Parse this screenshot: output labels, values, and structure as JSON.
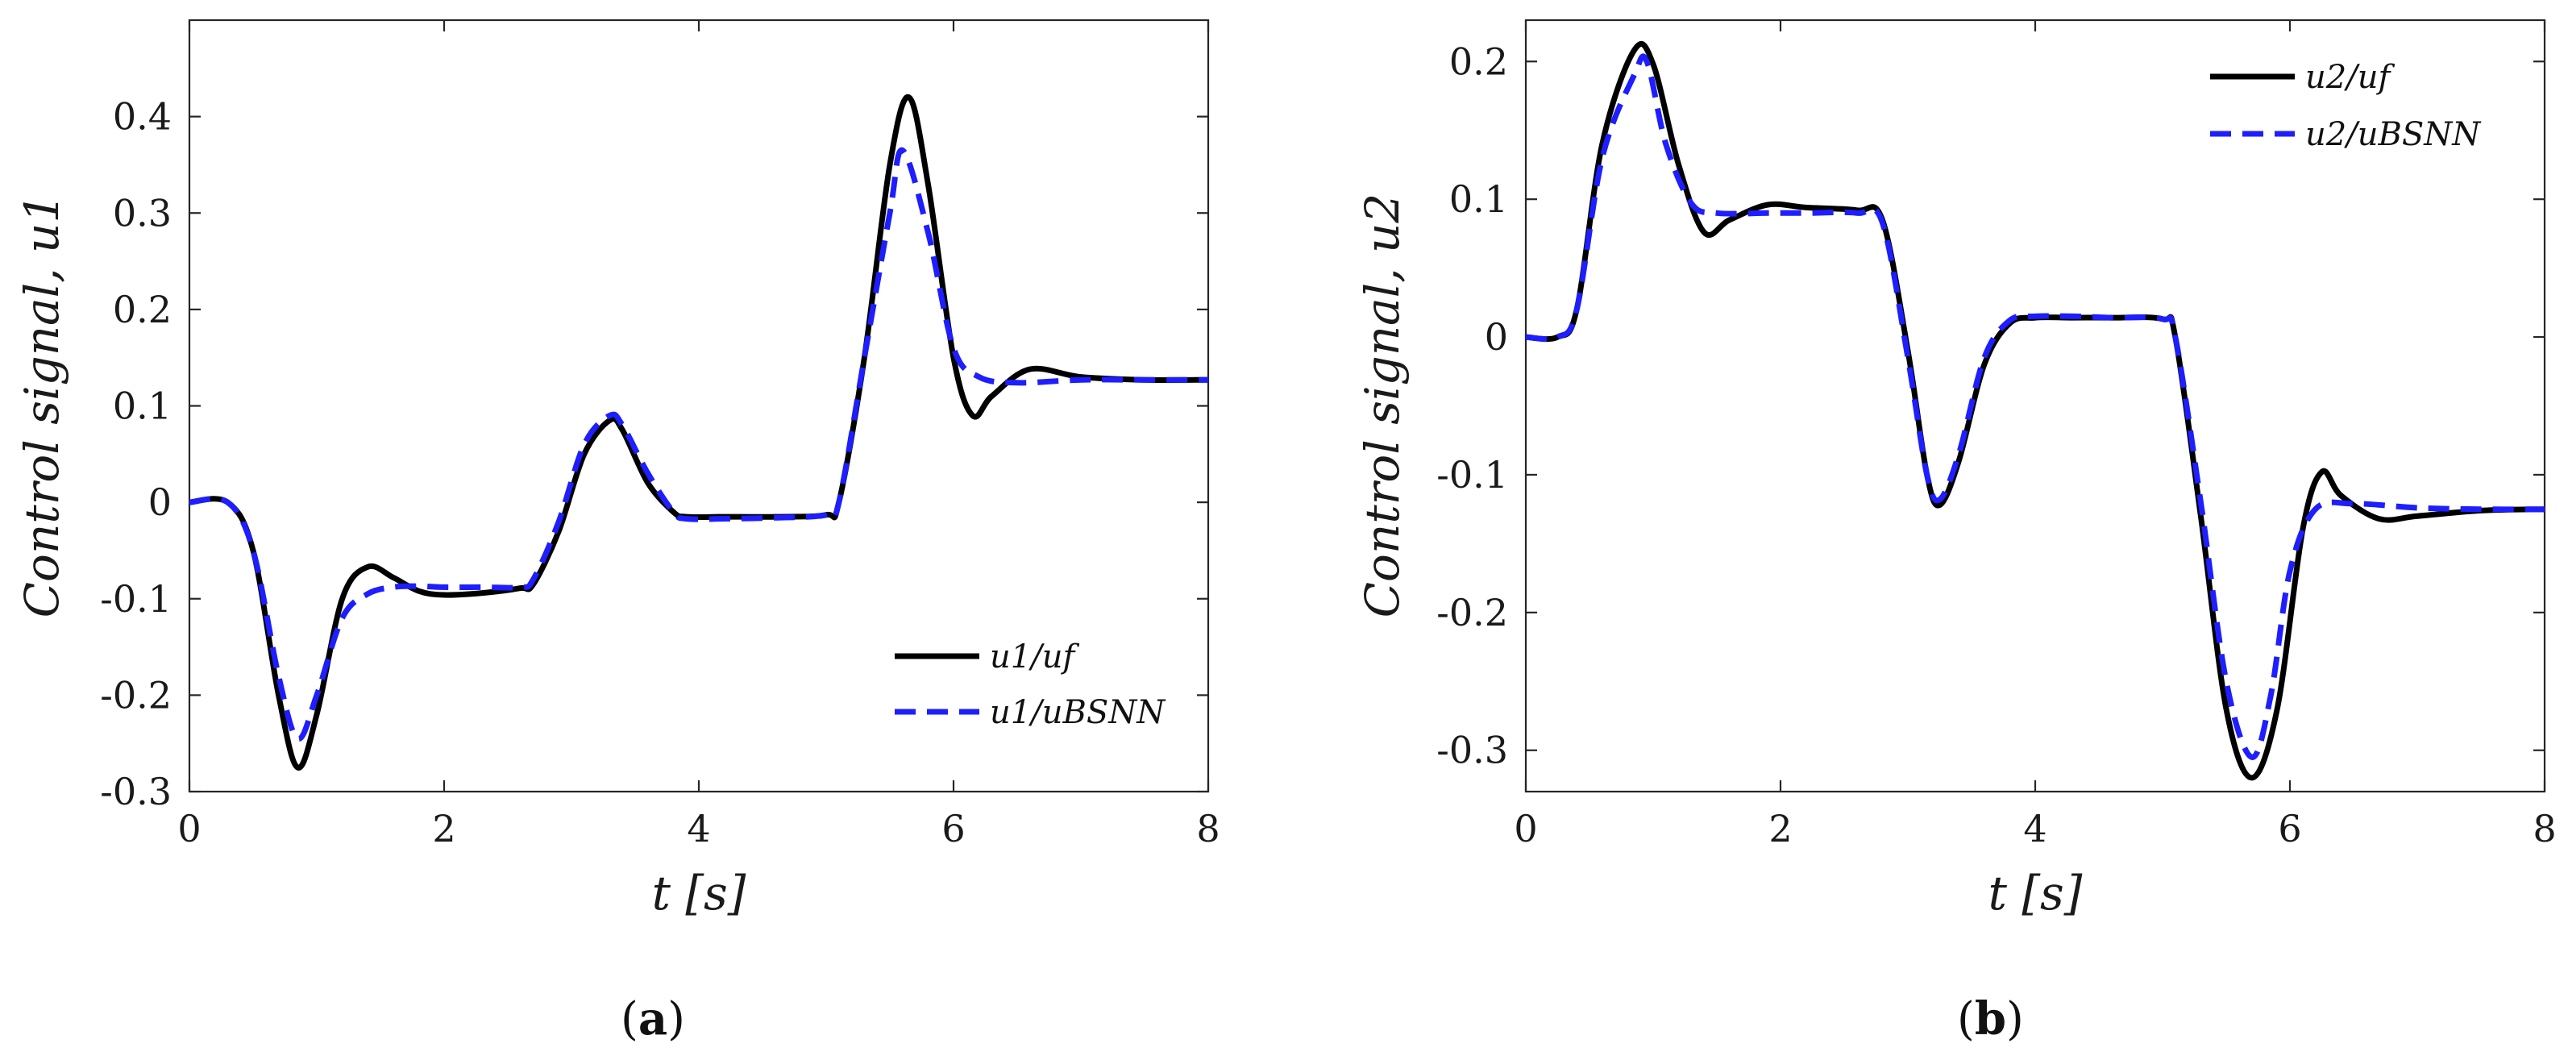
{
  "chart_data": [
    {
      "type": "line",
      "panel_label": "a",
      "xlabel": "t [s]",
      "ylabel": "Control signal, u1",
      "xlim": [
        0,
        8
      ],
      "ylim": [
        -0.3,
        0.5
      ],
      "xticks": [
        0,
        2,
        4,
        6,
        8
      ],
      "xtick_labels": [
        "0",
        "2",
        "4",
        "6",
        "8"
      ],
      "yticks": [
        -0.3,
        -0.2,
        -0.1,
        0,
        0.1,
        0.2,
        0.3,
        0.4
      ],
      "ytick_labels": [
        "-0.3",
        "-0.2",
        "-0.1",
        "0",
        "0.1",
        "0.2",
        "0.3",
        "0.4"
      ],
      "grid": false,
      "legend_position": "bottom-right",
      "series": [
        {
          "name": "u1/uf",
          "color": "#000000",
          "style": "solid",
          "x": [
            0,
            0.3,
            0.5,
            0.7,
            0.85,
            1.0,
            1.2,
            1.4,
            1.6,
            1.8,
            2.0,
            2.3,
            2.6,
            2.7,
            2.9,
            3.1,
            3.3,
            3.4,
            3.6,
            3.8,
            3.9,
            4.2,
            4.6,
            5.0,
            5.1,
            5.3,
            5.5,
            5.65,
            5.8,
            6.0,
            6.15,
            6.3,
            6.6,
            7.0,
            7.5,
            8.0
          ],
          "y": [
            0,
            0,
            -0.05,
            -0.2,
            -0.275,
            -0.22,
            -0.1,
            -0.067,
            -0.078,
            -0.092,
            -0.096,
            -0.094,
            -0.089,
            -0.085,
            -0.03,
            0.05,
            0.085,
            0.075,
            0.02,
            -0.01,
            -0.015,
            -0.015,
            -0.015,
            -0.013,
            0.0,
            0.15,
            0.35,
            0.42,
            0.33,
            0.15,
            0.09,
            0.11,
            0.138,
            0.13,
            0.127,
            0.127
          ]
        },
        {
          "name": "u1/uBSNN",
          "color": "#1e1eff",
          "style": "dashed",
          "x": [
            0,
            0.3,
            0.5,
            0.7,
            0.85,
            1.0,
            1.2,
            1.4,
            1.6,
            1.8,
            2.0,
            2.3,
            2.6,
            2.7,
            2.9,
            3.1,
            3.3,
            3.4,
            3.6,
            3.8,
            3.9,
            4.2,
            4.6,
            5.0,
            5.1,
            5.3,
            5.5,
            5.6,
            5.8,
            6.0,
            6.2,
            6.5,
            7.0,
            7.5,
            8.0
          ],
          "y": [
            0,
            0,
            -0.05,
            -0.18,
            -0.245,
            -0.2,
            -0.12,
            -0.095,
            -0.088,
            -0.087,
            -0.088,
            -0.088,
            -0.088,
            -0.08,
            -0.02,
            0.06,
            0.09,
            0.08,
            0.03,
            -0.01,
            -0.017,
            -0.017,
            -0.016,
            -0.013,
            0.0,
            0.15,
            0.3,
            0.365,
            0.28,
            0.16,
            0.13,
            0.124,
            0.127,
            0.127,
            0.127
          ]
        }
      ]
    },
    {
      "type": "line",
      "panel_label": "b",
      "xlabel": "t [s]",
      "ylabel": "Control signal, u2",
      "xlim": [
        0,
        8
      ],
      "ylim": [
        -0.33,
        0.23
      ],
      "xticks": [
        0,
        2,
        4,
        6,
        8
      ],
      "xtick_labels": [
        "0",
        "2",
        "4",
        "6",
        "8"
      ],
      "yticks": [
        -0.3,
        -0.2,
        -0.1,
        0,
        0.1,
        0.2
      ],
      "ytick_labels": [
        "-0.3",
        "-0.2",
        "-0.1",
        "0",
        "0.1",
        "0.2"
      ],
      "grid": false,
      "legend_position": "top-right",
      "series": [
        {
          "name": "u2/uf",
          "color": "#000000",
          "style": "solid",
          "x": [
            0,
            0.25,
            0.4,
            0.6,
            0.85,
            1.0,
            1.2,
            1.4,
            1.6,
            1.9,
            2.2,
            2.6,
            2.8,
            3.0,
            3.15,
            3.25,
            3.4,
            3.6,
            3.8,
            4.0,
            4.3,
            4.6,
            5.0,
            5.1,
            5.3,
            5.5,
            5.7,
            5.9,
            6.1,
            6.25,
            6.4,
            6.7,
            7.0,
            7.5,
            8.0
          ],
          "y": [
            0,
            0,
            0.02,
            0.14,
            0.208,
            0.198,
            0.125,
            0.076,
            0.085,
            0.096,
            0.094,
            0.092,
            0.085,
            -0.01,
            -0.1,
            -0.122,
            -0.09,
            -0.02,
            0.01,
            0.014,
            0.014,
            0.014,
            0.013,
            0.0,
            -0.13,
            -0.27,
            -0.32,
            -0.27,
            -0.14,
            -0.098,
            -0.115,
            -0.132,
            -0.13,
            -0.126,
            -0.125
          ]
        },
        {
          "name": "u2/uBSNN",
          "color": "#1e1eff",
          "style": "dashed",
          "x": [
            0,
            0.25,
            0.4,
            0.6,
            0.85,
            0.95,
            1.1,
            1.3,
            1.5,
            1.9,
            2.2,
            2.6,
            2.8,
            3.0,
            3.15,
            3.25,
            3.4,
            3.6,
            3.8,
            4.0,
            4.3,
            4.6,
            5.0,
            5.1,
            5.3,
            5.5,
            5.7,
            5.85,
            6.0,
            6.2,
            6.5,
            7.0,
            7.5,
            8.0
          ],
          "y": [
            0,
            0,
            0.02,
            0.13,
            0.19,
            0.2,
            0.14,
            0.097,
            0.09,
            0.09,
            0.09,
            0.09,
            0.083,
            -0.015,
            -0.1,
            -0.118,
            -0.085,
            -0.015,
            0.012,
            0.015,
            0.015,
            0.014,
            0.013,
            0.0,
            -0.12,
            -0.25,
            -0.305,
            -0.26,
            -0.17,
            -0.125,
            -0.121,
            -0.124,
            -0.125,
            -0.125
          ]
        }
      ]
    }
  ]
}
